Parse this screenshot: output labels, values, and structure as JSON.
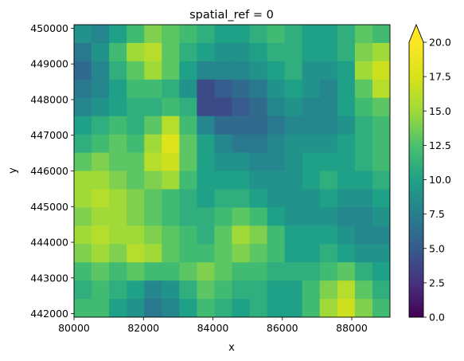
{
  "chart_data": {
    "type": "heatmap",
    "title": "spatial_ref = 0",
    "xlabel": "x",
    "ylabel": "y",
    "x_range": [
      80000,
      89100
    ],
    "y_range": [
      441900,
      450100
    ],
    "x_ticks": [
      80000,
      82000,
      84000,
      86000,
      88000
    ],
    "x_tick_labels": [
      "80000",
      "82000",
      "84000",
      "86000",
      "88000"
    ],
    "y_ticks": [
      442000,
      443000,
      444000,
      445000,
      446000,
      447000,
      448000,
      449000,
      450000
    ],
    "y_tick_labels": [
      "442000",
      "443000",
      "444000",
      "445000",
      "446000",
      "447000",
      "448000",
      "449000",
      "450000"
    ],
    "colormap": "viridis",
    "colorbar": {
      "vmin": 0.0,
      "vmax": 20.0,
      "extend": "max",
      "ticks": [
        0.0,
        2.5,
        5.0,
        7.5,
        10.0,
        12.5,
        15.0,
        17.5,
        20.0
      ],
      "tick_labels": [
        "0.0",
        "2.5",
        "5.0",
        "7.5",
        "10.0",
        "12.5",
        "15.0",
        "17.5",
        "20.0"
      ]
    },
    "grid_shape": [
      16,
      18
    ],
    "x_cells_start": 80000,
    "y_cells_start_top": 450100,
    "cell_size_approx": 506,
    "values": [
      [
        9,
        8,
        10,
        12,
        14,
        13,
        12,
        11,
        10,
        10,
        11,
        12,
        11,
        10,
        10,
        11,
        13,
        12
      ],
      [
        7,
        9,
        12,
        15,
        16,
        13,
        11,
        10,
        9,
        9,
        10,
        11,
        11,
        10,
        10,
        11,
        14,
        15
      ],
      [
        6,
        8,
        11,
        13,
        15,
        13,
        10,
        8,
        8,
        8,
        9,
        10,
        11,
        9,
        9,
        10,
        15,
        17
      ],
      [
        7,
        8,
        10,
        12,
        12,
        11,
        9,
        4,
        5,
        6,
        7,
        9,
        10,
        9,
        8,
        10,
        13,
        16
      ],
      [
        8,
        9,
        10,
        11,
        11,
        12,
        11,
        4,
        4,
        5,
        6,
        8,
        9,
        8,
        8,
        10,
        12,
        13
      ],
      [
        10,
        11,
        12,
        11,
        13,
        16,
        12,
        8,
        6,
        6,
        6,
        7,
        8,
        8,
        8,
        9,
        11,
        12
      ],
      [
        11,
        12,
        13,
        12,
        15,
        18,
        13,
        10,
        8,
        7,
        7,
        8,
        9,
        9,
        9,
        10,
        11,
        12
      ],
      [
        13,
        14,
        13,
        13,
        16,
        17,
        13,
        10,
        9,
        9,
        8,
        8,
        9,
        10,
        10,
        10,
        11,
        12
      ],
      [
        15,
        15,
        14,
        13,
        14,
        15,
        12,
        10,
        10,
        10,
        9,
        9,
        9,
        10,
        11,
        10,
        10,
        11
      ],
      [
        15,
        16,
        15,
        14,
        13,
        12,
        11,
        10,
        11,
        11,
        10,
        9,
        9,
        9,
        10,
        9,
        9,
        10
      ],
      [
        14,
        15,
        15,
        14,
        13,
        12,
        11,
        11,
        12,
        13,
        12,
        10,
        9,
        9,
        9,
        8,
        8,
        9
      ],
      [
        15,
        16,
        15,
        15,
        14,
        13,
        12,
        11,
        13,
        15,
        14,
        12,
        10,
        10,
        10,
        9,
        8,
        8
      ],
      [
        14,
        15,
        14,
        16,
        15,
        13,
        12,
        12,
        13,
        14,
        13,
        12,
        10,
        10,
        11,
        10,
        9,
        9
      ],
      [
        12,
        13,
        12,
        13,
        12,
        12,
        13,
        14,
        13,
        12,
        12,
        11,
        11,
        11,
        12,
        13,
        11,
        10
      ],
      [
        11,
        12,
        11,
        10,
        8,
        9,
        11,
        13,
        12,
        11,
        11,
        10,
        10,
        12,
        14,
        16,
        13,
        11
      ],
      [
        12,
        12,
        10,
        9,
        7,
        8,
        10,
        12,
        11,
        10,
        11,
        10,
        10,
        12,
        15,
        17,
        14,
        12
      ]
    ]
  }
}
